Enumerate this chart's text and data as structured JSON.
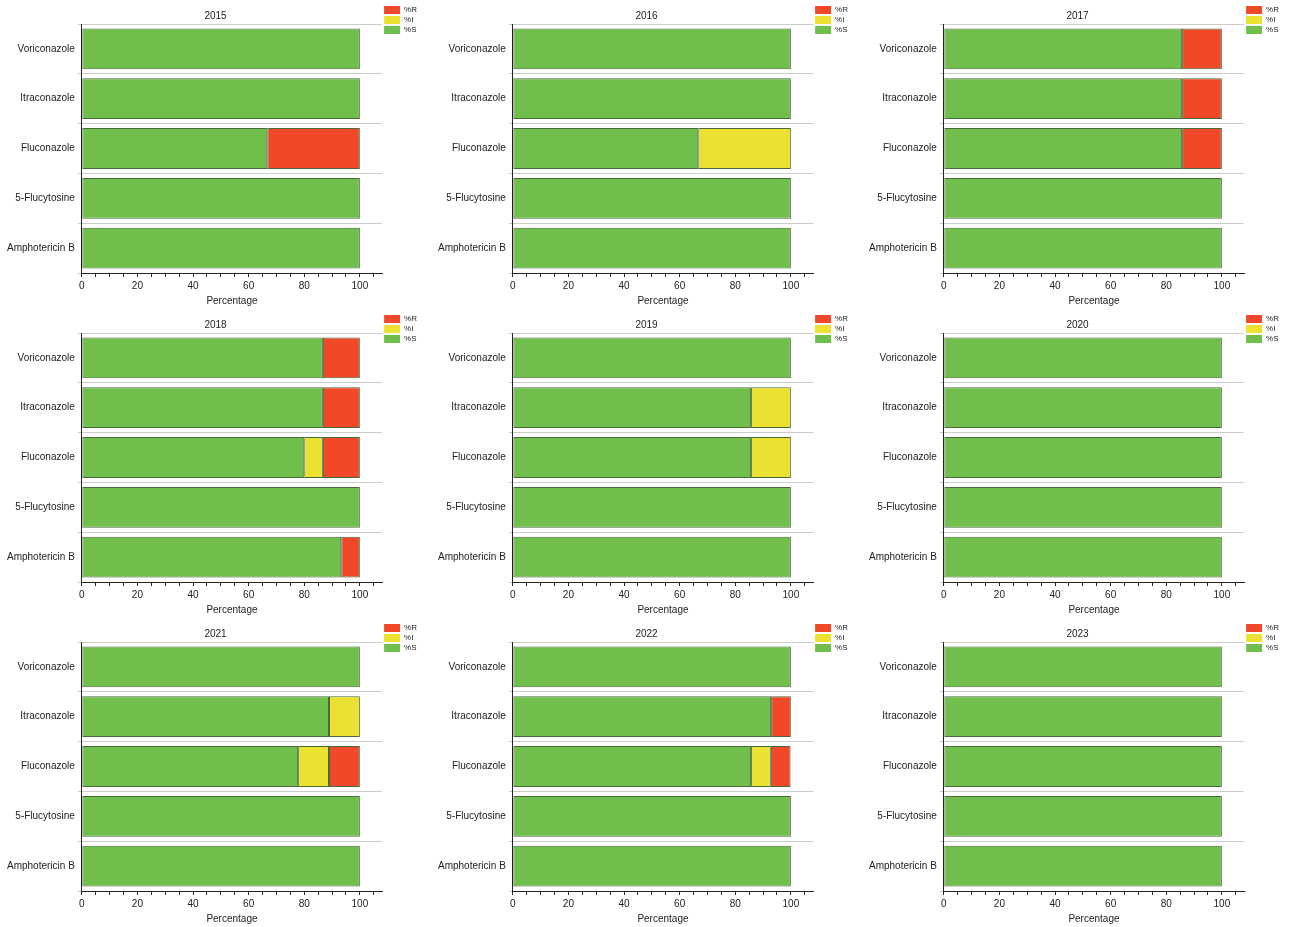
{
  "chart_data": [
    {
      "type": "bar",
      "orientation": "horizontal",
      "stacked": true,
      "title": "2015",
      "xlabel": "Percentage",
      "categories": [
        "Voriconazole",
        "Itraconazole",
        "Fluconazole",
        "5-Flucytosine",
        "Amphotericin B"
      ],
      "xlim": [
        0,
        108
      ],
      "xticks": [
        0,
        {
          "value": 5,
          "label": null
        },
        {
          "value": 10,
          "label": null
        },
        {
          "value": 15,
          "label": null
        },
        20,
        {
          "value": 25,
          "label": null
        },
        {
          "value": 30,
          "label": null
        },
        {
          "value": 35,
          "label": null
        },
        40,
        {
          "value": 45,
          "label": null
        },
        {
          "value": 50,
          "label": null
        },
        {
          "value": 55,
          "label": null
        },
        60,
        {
          "value": 65,
          "label": null
        },
        {
          "value": 70,
          "label": null
        },
        {
          "value": 75,
          "label": null
        },
        80,
        {
          "value": 85,
          "label": null
        },
        {
          "value": 90,
          "label": null
        },
        {
          "value": 95,
          "label": null
        },
        100,
        {
          "value": 105,
          "label": null
        }
      ],
      "grid": "y",
      "legend": "top right",
      "series": [
        {
          "name": "%S",
          "color": "#70bf4c",
          "values": [
            100,
            100,
            66.7,
            100,
            100
          ]
        },
        {
          "name": "%I",
          "color": "#ece030",
          "values": [
            0,
            0,
            0,
            0,
            0
          ]
        },
        {
          "name": "%R",
          "color": "#f04828",
          "values": [
            0,
            0,
            33.3,
            0,
            0
          ]
        }
      ]
    },
    {
      "type": "bar",
      "orientation": "horizontal",
      "stacked": true,
      "title": "2016",
      "xlabel": "Percentage",
      "categories": [
        "Voriconazole",
        "Itraconazole",
        "Fluconazole",
        "5-Flucytosine",
        "Amphotericin B"
      ],
      "xlim": [
        0,
        108
      ],
      "xticks": [
        0,
        {
          "value": 5,
          "label": null
        },
        {
          "value": 10,
          "label": null
        },
        {
          "value": 15,
          "label": null
        },
        20,
        {
          "value": 25,
          "label": null
        },
        {
          "value": 30,
          "label": null
        },
        {
          "value": 35,
          "label": null
        },
        40,
        {
          "value": 45,
          "label": null
        },
        {
          "value": 50,
          "label": null
        },
        {
          "value": 55,
          "label": null
        },
        60,
        {
          "value": 65,
          "label": null
        },
        {
          "value": 70,
          "label": null
        },
        {
          "value": 75,
          "label": null
        },
        80,
        {
          "value": 85,
          "label": null
        },
        {
          "value": 90,
          "label": null
        },
        {
          "value": 95,
          "label": null
        },
        100,
        {
          "value": 105,
          "label": null
        }
      ],
      "grid": "y",
      "legend": "top right",
      "series": [
        {
          "name": "%S",
          "color": "#70bf4c",
          "values": [
            100,
            100,
            66.7,
            100,
            100
          ]
        },
        {
          "name": "%I",
          "color": "#ece030",
          "values": [
            0,
            0,
            33.3,
            0,
            0
          ]
        },
        {
          "name": "%R",
          "color": "#f04828",
          "values": [
            0,
            0,
            0,
            0,
            0
          ]
        }
      ]
    },
    {
      "type": "bar",
      "orientation": "horizontal",
      "stacked": true,
      "title": "2017",
      "xlabel": "Percentage",
      "categories": [
        "Voriconazole",
        "Itraconazole",
        "Fluconazole",
        "5-Flucytosine",
        "Amphotericin B"
      ],
      "xlim": [
        0,
        108
      ],
      "xticks": [
        0,
        {
          "value": 5,
          "label": null
        },
        {
          "value": 10,
          "label": null
        },
        {
          "value": 15,
          "label": null
        },
        20,
        {
          "value": 25,
          "label": null
        },
        {
          "value": 30,
          "label": null
        },
        {
          "value": 35,
          "label": null
        },
        40,
        {
          "value": 45,
          "label": null
        },
        {
          "value": 50,
          "label": null
        },
        {
          "value": 55,
          "label": null
        },
        60,
        {
          "value": 65,
          "label": null
        },
        {
          "value": 70,
          "label": null
        },
        {
          "value": 75,
          "label": null
        },
        80,
        {
          "value": 85,
          "label": null
        },
        {
          "value": 90,
          "label": null
        },
        {
          "value": 95,
          "label": null
        },
        100,
        {
          "value": 105,
          "label": null
        }
      ],
      "grid": "y",
      "legend": "top right",
      "series": [
        {
          "name": "%S",
          "color": "#70bf4c",
          "values": [
            85.7,
            85.7,
            85.7,
            100,
            100
          ]
        },
        {
          "name": "%I",
          "color": "#ece030",
          "values": [
            0,
            0,
            0,
            0,
            0
          ]
        },
        {
          "name": "%R",
          "color": "#f04828",
          "values": [
            14.3,
            14.3,
            14.3,
            0,
            0
          ]
        }
      ]
    },
    {
      "type": "bar",
      "orientation": "horizontal",
      "stacked": true,
      "title": "2018",
      "xlabel": "Percentage",
      "categories": [
        "Voriconazole",
        "Itraconazole",
        "Fluconazole",
        "5-Flucytosine",
        "Amphotericin B"
      ],
      "xlim": [
        0,
        108
      ],
      "xticks": [
        0,
        {
          "value": 5,
          "label": null
        },
        {
          "value": 10,
          "label": null
        },
        {
          "value": 15,
          "label": null
        },
        20,
        {
          "value": 25,
          "label": null
        },
        {
          "value": 30,
          "label": null
        },
        {
          "value": 35,
          "label": null
        },
        40,
        {
          "value": 45,
          "label": null
        },
        {
          "value": 50,
          "label": null
        },
        {
          "value": 55,
          "label": null
        },
        60,
        {
          "value": 65,
          "label": null
        },
        {
          "value": 70,
          "label": null
        },
        {
          "value": 75,
          "label": null
        },
        80,
        {
          "value": 85,
          "label": null
        },
        {
          "value": 90,
          "label": null
        },
        {
          "value": 95,
          "label": null
        },
        100,
        {
          "value": 105,
          "label": null
        }
      ],
      "grid": "y",
      "legend": "top right",
      "series": [
        {
          "name": "%S",
          "color": "#70bf4c",
          "values": [
            86.7,
            86.7,
            80,
            100,
            93.3
          ]
        },
        {
          "name": "%I",
          "color": "#ece030",
          "values": [
            0,
            0,
            6.7,
            0,
            0
          ]
        },
        {
          "name": "%R",
          "color": "#f04828",
          "values": [
            13.3,
            13.3,
            13.3,
            0,
            6.7
          ]
        }
      ]
    },
    {
      "type": "bar",
      "orientation": "horizontal",
      "stacked": true,
      "title": "2019",
      "xlabel": "Percentage",
      "categories": [
        "Voriconazole",
        "Itraconazole",
        "Fluconazole",
        "5-Flucytosine",
        "Amphotericin B"
      ],
      "xlim": [
        0,
        108
      ],
      "xticks": [
        0,
        {
          "value": 5,
          "label": null
        },
        {
          "value": 10,
          "label": null
        },
        {
          "value": 15,
          "label": null
        },
        20,
        {
          "value": 25,
          "label": null
        },
        {
          "value": 30,
          "label": null
        },
        {
          "value": 35,
          "label": null
        },
        40,
        {
          "value": 45,
          "label": null
        },
        {
          "value": 50,
          "label": null
        },
        {
          "value": 55,
          "label": null
        },
        60,
        {
          "value": 65,
          "label": null
        },
        {
          "value": 70,
          "label": null
        },
        {
          "value": 75,
          "label": null
        },
        80,
        {
          "value": 85,
          "label": null
        },
        {
          "value": 90,
          "label": null
        },
        {
          "value": 95,
          "label": null
        },
        100,
        {
          "value": 105,
          "label": null
        }
      ],
      "grid": "y",
      "legend": "top right",
      "series": [
        {
          "name": "%S",
          "color": "#70bf4c",
          "values": [
            100,
            85.7,
            85.7,
            100,
            100
          ]
        },
        {
          "name": "%I",
          "color": "#ece030",
          "values": [
            0,
            14.3,
            14.3,
            0,
            0
          ]
        },
        {
          "name": "%R",
          "color": "#f04828",
          "values": [
            0,
            0,
            0,
            0,
            0
          ]
        }
      ]
    },
    {
      "type": "bar",
      "orientation": "horizontal",
      "stacked": true,
      "title": "2020",
      "xlabel": "Percentage",
      "categories": [
        "Voriconazole",
        "Itraconazole",
        "Fluconazole",
        "5-Flucytosine",
        "Amphotericin B"
      ],
      "xlim": [
        0,
        108
      ],
      "xticks": [
        0,
        {
          "value": 5,
          "label": null
        },
        {
          "value": 10,
          "label": null
        },
        {
          "value": 15,
          "label": null
        },
        20,
        {
          "value": 25,
          "label": null
        },
        {
          "value": 30,
          "label": null
        },
        {
          "value": 35,
          "label": null
        },
        40,
        {
          "value": 45,
          "label": null
        },
        {
          "value": 50,
          "label": null
        },
        {
          "value": 55,
          "label": null
        },
        60,
        {
          "value": 65,
          "label": null
        },
        {
          "value": 70,
          "label": null
        },
        {
          "value": 75,
          "label": null
        },
        80,
        {
          "value": 85,
          "label": null
        },
        {
          "value": 90,
          "label": null
        },
        {
          "value": 95,
          "label": null
        },
        100,
        {
          "value": 105,
          "label": null
        }
      ],
      "grid": "y",
      "legend": "top right",
      "series": [
        {
          "name": "%S",
          "color": "#70bf4c",
          "values": [
            100,
            100,
            100,
            100,
            100
          ]
        },
        {
          "name": "%I",
          "color": "#ece030",
          "values": [
            0,
            0,
            0,
            0,
            0
          ]
        },
        {
          "name": "%R",
          "color": "#f04828",
          "values": [
            0,
            0,
            0,
            0,
            0
          ]
        }
      ]
    },
    {
      "type": "bar",
      "orientation": "horizontal",
      "stacked": true,
      "title": "2021",
      "xlabel": "Percentage",
      "categories": [
        "Voriconazole",
        "Itraconazole",
        "Fluconazole",
        "5-Flucytosine",
        "Amphotericin B"
      ],
      "xlim": [
        0,
        108
      ],
      "xticks": [
        0,
        {
          "value": 5,
          "label": null
        },
        {
          "value": 10,
          "label": null
        },
        {
          "value": 15,
          "label": null
        },
        20,
        {
          "value": 25,
          "label": null
        },
        {
          "value": 30,
          "label": null
        },
        {
          "value": 35,
          "label": null
        },
        40,
        {
          "value": 45,
          "label": null
        },
        {
          "value": 50,
          "label": null
        },
        {
          "value": 55,
          "label": null
        },
        60,
        {
          "value": 65,
          "label": null
        },
        {
          "value": 70,
          "label": null
        },
        {
          "value": 75,
          "label": null
        },
        80,
        {
          "value": 85,
          "label": null
        },
        {
          "value": 90,
          "label": null
        },
        {
          "value": 95,
          "label": null
        },
        100,
        {
          "value": 105,
          "label": null
        }
      ],
      "grid": "y",
      "legend": "top right",
      "series": [
        {
          "name": "%S",
          "color": "#70bf4c",
          "values": [
            100,
            88.9,
            77.8,
            100,
            100
          ]
        },
        {
          "name": "%I",
          "color": "#ece030",
          "values": [
            0,
            11.1,
            11.1,
            0,
            0
          ]
        },
        {
          "name": "%R",
          "color": "#f04828",
          "values": [
            0,
            0,
            11.1,
            0,
            0
          ]
        }
      ]
    },
    {
      "type": "bar",
      "orientation": "horizontal",
      "stacked": true,
      "title": "2022",
      "xlabel": "Percentage",
      "categories": [
        "Voriconazole",
        "Itraconazole",
        "Fluconazole",
        "5-Flucytosine",
        "Amphotericin B"
      ],
      "xlim": [
        0,
        108
      ],
      "xticks": [
        0,
        {
          "value": 5,
          "label": null
        },
        {
          "value": 10,
          "label": null
        },
        {
          "value": 15,
          "label": null
        },
        20,
        {
          "value": 25,
          "label": null
        },
        {
          "value": 30,
          "label": null
        },
        {
          "value": 35,
          "label": null
        },
        40,
        {
          "value": 45,
          "label": null
        },
        {
          "value": 50,
          "label": null
        },
        {
          "value": 55,
          "label": null
        },
        60,
        {
          "value": 65,
          "label": null
        },
        {
          "value": 70,
          "label": null
        },
        {
          "value": 75,
          "label": null
        },
        80,
        {
          "value": 85,
          "label": null
        },
        {
          "value": 90,
          "label": null
        },
        {
          "value": 95,
          "label": null
        },
        100,
        {
          "value": 105,
          "label": null
        }
      ],
      "grid": "y",
      "legend": "top right",
      "series": [
        {
          "name": "%S",
          "color": "#70bf4c",
          "values": [
            100,
            92.9,
            85.7,
            100,
            100
          ]
        },
        {
          "name": "%I",
          "color": "#ece030",
          "values": [
            0,
            0,
            7.1,
            0,
            0
          ]
        },
        {
          "name": "%R",
          "color": "#f04828",
          "values": [
            0,
            7.1,
            7.1,
            0,
            0
          ]
        }
      ]
    },
    {
      "type": "bar",
      "orientation": "horizontal",
      "stacked": true,
      "title": "2023",
      "xlabel": "Percentage",
      "categories": [
        "Voriconazole",
        "Itraconazole",
        "Fluconazole",
        "5-Flucytosine",
        "Amphotericin B"
      ],
      "xlim": [
        0,
        108
      ],
      "xticks": [
        0,
        {
          "value": 5,
          "label": null
        },
        {
          "value": 10,
          "label": null
        },
        {
          "value": 15,
          "label": null
        },
        20,
        {
          "value": 25,
          "label": null
        },
        {
          "value": 30,
          "label": null
        },
        {
          "value": 35,
          "label": null
        },
        40,
        {
          "value": 45,
          "label": null
        },
        {
          "value": 50,
          "label": null
        },
        {
          "value": 55,
          "label": null
        },
        60,
        {
          "value": 65,
          "label": null
        },
        {
          "value": 70,
          "label": null
        },
        {
          "value": 75,
          "label": null
        },
        80,
        {
          "value": 85,
          "label": null
        },
        {
          "value": 90,
          "label": null
        },
        {
          "value": 95,
          "label": null
        },
        100,
        {
          "value": 105,
          "label": null
        }
      ],
      "grid": "y",
      "legend": "top right",
      "series": [
        {
          "name": "%S",
          "color": "#70bf4c",
          "values": [
            100,
            100,
            100,
            100,
            100
          ]
        },
        {
          "name": "%I",
          "color": "#ece030",
          "values": [
            0,
            0,
            0,
            0,
            0
          ]
        },
        {
          "name": "%R",
          "color": "#f04828",
          "values": [
            0,
            0,
            0,
            0,
            0
          ]
        }
      ]
    }
  ]
}
